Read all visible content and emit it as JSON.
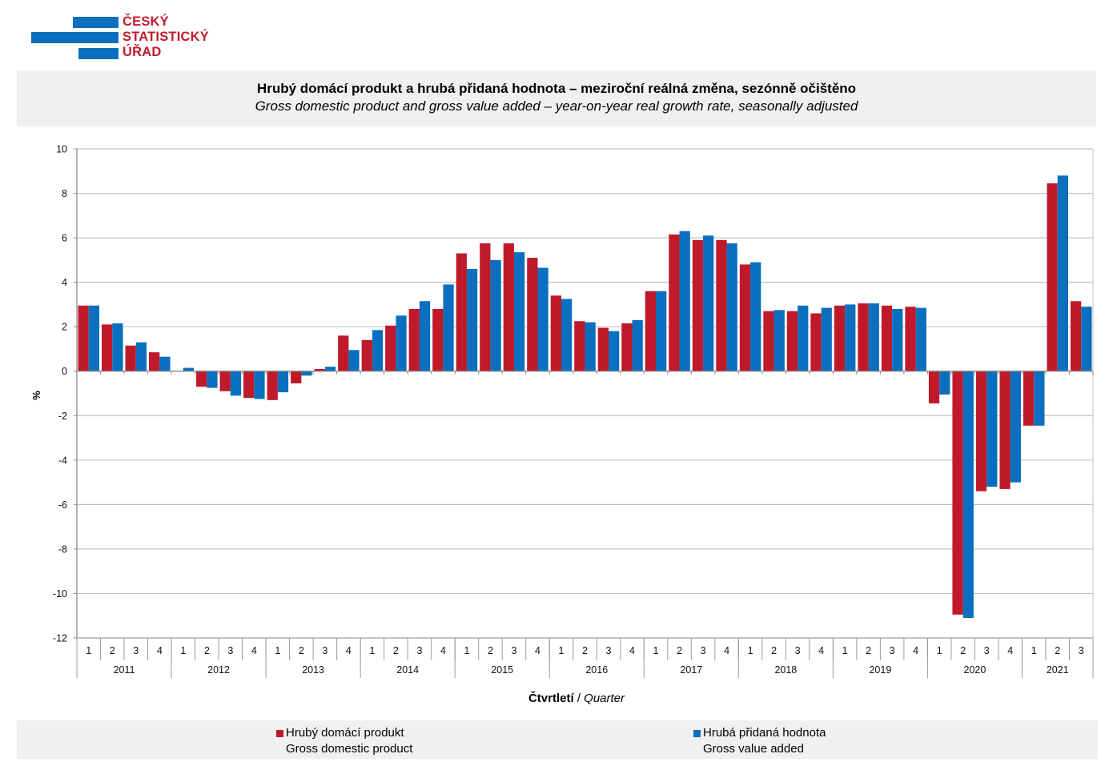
{
  "logo": {
    "lines": [
      "ČESKÝ",
      "STATISTICKÝ",
      "ÚŘAD"
    ],
    "bar_color": "#0b6fbd",
    "text_color": "#c21b2b"
  },
  "header": {
    "title_cz": "Hrubý domácí produkt a hrubá přidaná hodnota – meziroční reálná změna, sezónně očištěno",
    "title_en": "Gross domestic product and gross value added – year-on-year real growth rate, seasonally adjusted"
  },
  "axis": {
    "x_title_cz": "Čtvrtletí",
    "x_title_sep": " / ",
    "x_title_en": "Quarter"
  },
  "legend": [
    {
      "label_cz": "Hrubý domácí produkt",
      "label_en": "Gross domestic product",
      "color": "#c0192a"
    },
    {
      "label_cz": "Hrubá přidaná hodnota",
      "label_en": "Gross value added",
      "color": "#0a6fbe"
    }
  ],
  "chart_data": {
    "type": "bar",
    "title": "Hrubý domácí produkt a hrubá přidaná hodnota – meziroční reálná změna, sezónně očištěno",
    "subtitle": "Gross domestic product and gross value added – year-on-year real growth rate, seasonally adjusted",
    "xlabel": "Čtvrtletí / Quarter",
    "ylabel": "%",
    "ylim": [
      -12,
      10
    ],
    "yticks": [
      10,
      8,
      6,
      4,
      2,
      0,
      -2,
      -4,
      -6,
      -8,
      -10,
      -12
    ],
    "grid": true,
    "legend_position": "bottom",
    "years": [
      "2011",
      "2012",
      "2013",
      "2014",
      "2015",
      "2016",
      "2017",
      "2018",
      "2019",
      "2020",
      "2021"
    ],
    "quarters_per_year": [
      4,
      4,
      4,
      4,
      4,
      4,
      4,
      4,
      4,
      4,
      3
    ],
    "categories": [
      "2011 Q1",
      "2011 Q2",
      "2011 Q3",
      "2011 Q4",
      "2012 Q1",
      "2012 Q2",
      "2012 Q3",
      "2012 Q4",
      "2013 Q1",
      "2013 Q2",
      "2013 Q3",
      "2013 Q4",
      "2014 Q1",
      "2014 Q2",
      "2014 Q3",
      "2014 Q4",
      "2015 Q1",
      "2015 Q2",
      "2015 Q3",
      "2015 Q4",
      "2016 Q1",
      "2016 Q2",
      "2016 Q3",
      "2016 Q4",
      "2017 Q1",
      "2017 Q2",
      "2017 Q3",
      "2017 Q4",
      "2018 Q1",
      "2018 Q2",
      "2018 Q3",
      "2018 Q4",
      "2019 Q1",
      "2019 Q2",
      "2019 Q3",
      "2019 Q4",
      "2020 Q1",
      "2020 Q2",
      "2020 Q3",
      "2020 Q4",
      "2021 Q1",
      "2021 Q2",
      "2021 Q3"
    ],
    "quarter_labels": [
      "1",
      "2",
      "3",
      "4",
      "1",
      "2",
      "3",
      "4",
      "1",
      "2",
      "3",
      "4",
      "1",
      "2",
      "3",
      "4",
      "1",
      "2",
      "3",
      "4",
      "1",
      "2",
      "3",
      "4",
      "1",
      "2",
      "3",
      "4",
      "1",
      "2",
      "3",
      "4",
      "1",
      "2",
      "3",
      "4",
      "1",
      "2",
      "3",
      "4",
      "1",
      "2",
      "3"
    ],
    "series": [
      {
        "name": "Hrubý domácí produkt / Gross domestic product",
        "color": "#c0192a",
        "values": [
          2.95,
          2.1,
          1.15,
          0.85,
          0.02,
          -0.7,
          -0.9,
          -1.2,
          -1.3,
          -0.55,
          0.1,
          1.6,
          1.4,
          2.05,
          2.8,
          2.8,
          5.3,
          5.75,
          5.75,
          5.1,
          3.4,
          2.25,
          1.95,
          2.15,
          3.6,
          6.15,
          5.9,
          5.9,
          4.8,
          2.7,
          2.7,
          2.6,
          2.95,
          3.05,
          2.95,
          2.9,
          -1.45,
          -10.95,
          -5.4,
          -5.3,
          -2.45,
          8.45,
          3.15
        ]
      },
      {
        "name": "Hrubá přidaná hodnota / Gross value added",
        "color": "#0a6fbe",
        "values": [
          2.95,
          2.15,
          1.3,
          0.65,
          0.15,
          -0.75,
          -1.1,
          -1.25,
          -0.95,
          -0.2,
          0.2,
          0.95,
          1.85,
          2.5,
          3.15,
          3.9,
          4.6,
          5.0,
          5.35,
          4.65,
          3.25,
          2.2,
          1.8,
          2.3,
          3.6,
          6.3,
          6.1,
          5.75,
          4.9,
          2.75,
          2.95,
          2.85,
          3.0,
          3.05,
          2.8,
          2.85,
          -1.05,
          -11.1,
          -5.2,
          -5.0,
          -2.45,
          8.8,
          2.9
        ]
      }
    ]
  }
}
